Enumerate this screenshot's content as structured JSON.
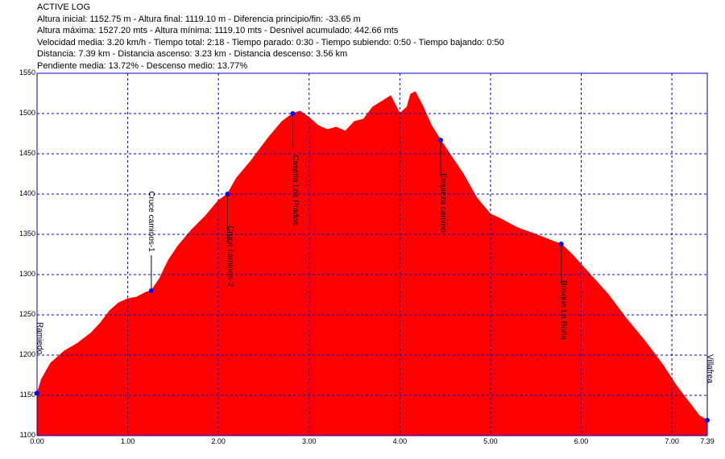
{
  "header": {
    "title": "ACTIVE LOG",
    "lines": [
      "Altura inicial: 1152.75 m - Altura final: 1119.10 m - Diferencia principio/fin: -33.65 m",
      "Altura máxima: 1527.20 mts - Altura mínima: 1119.10 mts - Desnivel acumulado: 442.66 mts",
      "Velocidad media: 3.20 km/h - Tiempo total: 2:18 - Tiempo parado: 0:30 - Tiempo subiendo: 0:50 - Tiempo bajando: 0:50",
      "Distancia: 7.39 km - Distancia ascenso: 3.23 km - Distancia descenso: 3.56 km",
      "Pendiente media: 13.72% - Descenso medio: 13.77%"
    ]
  },
  "colors": {
    "fill": "#ff0000",
    "grid": "#0000cc",
    "frame": "#0000cc",
    "waypoint": "#0000ff"
  },
  "chart_data": {
    "type": "area",
    "title": "",
    "xlabel": "",
    "ylabel": "",
    "xlim": [
      0,
      7.39
    ],
    "ylim": [
      1100,
      1550
    ],
    "xticks": [
      "0.00",
      "1.00",
      "2.00",
      "3.00",
      "4.00",
      "5.00",
      "6.00",
      "7.00",
      "7.39"
    ],
    "xtick_values": [
      0,
      1,
      2,
      3,
      4,
      5,
      6,
      7,
      7.39
    ],
    "yticks": [
      "1100",
      "1150",
      "1200",
      "1250",
      "1300",
      "1350",
      "1400",
      "1450",
      "1500",
      "1550"
    ],
    "ytick_values": [
      1100,
      1150,
      1200,
      1250,
      1300,
      1350,
      1400,
      1450,
      1500,
      1550
    ],
    "grid": true,
    "series": [
      {
        "x": [
          0.0,
          0.05,
          0.15,
          0.3,
          0.45,
          0.6,
          0.7,
          0.8,
          0.9,
          1.0,
          1.1,
          1.2,
          1.26,
          1.35,
          1.45,
          1.55,
          1.7,
          1.85,
          2.0,
          2.1,
          2.2,
          2.35,
          2.45,
          2.55,
          2.7,
          2.82,
          2.9,
          3.0,
          3.1,
          3.2,
          3.3,
          3.4,
          3.5,
          3.6,
          3.7,
          3.8,
          3.9,
          4.0,
          4.08,
          4.12,
          4.17,
          4.25,
          4.35,
          4.45,
          4.55,
          4.7,
          4.85,
          5.0,
          5.1,
          5.3,
          5.5,
          5.7,
          5.78,
          5.9,
          6.1,
          6.3,
          6.5,
          6.7,
          6.9,
          7.05,
          7.2,
          7.3,
          7.39
        ],
        "y": [
          1152,
          1170,
          1190,
          1205,
          1215,
          1228,
          1240,
          1255,
          1265,
          1270,
          1272,
          1278,
          1280,
          1295,
          1318,
          1335,
          1355,
          1372,
          1392,
          1400,
          1420,
          1440,
          1455,
          1470,
          1490,
          1500,
          1503,
          1495,
          1485,
          1480,
          1483,
          1478,
          1490,
          1493,
          1508,
          1515,
          1522,
          1500,
          1508,
          1524,
          1527,
          1510,
          1485,
          1467,
          1450,
          1425,
          1395,
          1375,
          1370,
          1358,
          1350,
          1341,
          1338,
          1325,
          1300,
          1275,
          1245,
          1218,
          1188,
          1162,
          1140,
          1125,
          1119
        ]
      }
    ],
    "waypoints": [
      {
        "name": "Ramiedo",
        "x": 0.0,
        "y": 1152.75
      },
      {
        "name": "Cruce caminos-1",
        "x": 1.26,
        "y": 1280
      },
      {
        "name": "Cruce caminos-2",
        "x": 2.1,
        "y": 1400
      },
      {
        "name": "Caseria Los Prados",
        "x": 2.82,
        "y": 1500
      },
      {
        "name": "Empieza camino",
        "x": 4.45,
        "y": 1467
      },
      {
        "name": "Bosque La Boria",
        "x": 5.78,
        "y": 1338
      },
      {
        "name": "Villafrea",
        "x": 7.39,
        "y": 1119.1
      }
    ]
  }
}
